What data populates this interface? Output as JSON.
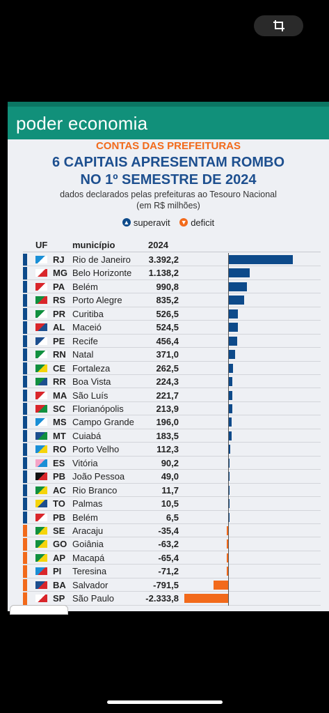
{
  "header": {
    "brand": "poder economia"
  },
  "kicker": "CONTAS DAS PREFEITURAS",
  "title_line1": "6 CAPITAIS APRESENTAM ROMBO",
  "title_line2": "NO 1º SEMESTRE DE 2024",
  "subtitle_line1": "dados declarados pelas prefeituras ao Tesouro Nacional",
  "subtitle_line2": "(em R$ milhões)",
  "legend": {
    "surplus": "superavit",
    "deficit": "deficit",
    "surplus_color": "#0d4a8a",
    "deficit_color": "#f26a1b"
  },
  "columns": {
    "uf": "UF",
    "municipio": "município",
    "year": "2024"
  },
  "chart_data": {
    "type": "bar",
    "orientation": "horizontal",
    "title": "6 CAPITAIS APRESENTAM ROMBO NO 1º SEMESTRE DE 2024",
    "categories": [
      "Rio de Janeiro",
      "Belo Horizonte",
      "Belém",
      "Porto Alegre",
      "Curitiba",
      "Maceió",
      "Recife",
      "Natal",
      "Fortaleza",
      "Boa Vista",
      "São Luís",
      "Florianópolis",
      "Campo Grande",
      "Cuiabá",
      "Porto Velho",
      "Vitória",
      "João Pessoa",
      "Rio Branco",
      "Palmas",
      "Belém",
      "Aracaju",
      "Goiânia",
      "Macapá",
      "Teresina",
      "Salvador",
      "São Paulo"
    ],
    "uf": [
      "RJ",
      "MG",
      "PA",
      "RS",
      "PR",
      "AL",
      "PE",
      "RN",
      "CE",
      "RR",
      "MA",
      "SC",
      "MS",
      "MT",
      "RO",
      "ES",
      "PB",
      "AC",
      "TO",
      "PB",
      "SE",
      "GO",
      "AP",
      "PI",
      "BA",
      "SP"
    ],
    "value_labels": [
      "3.392,2",
      "1.138,2",
      "990,8",
      "835,2",
      "526,5",
      "524,5",
      "456,4",
      "371,0",
      "262,5",
      "224,3",
      "221,7",
      "213,9",
      "196,0",
      "183,5",
      "112,3",
      "90,2",
      "49,0",
      "11,7",
      "10,5",
      "6,5",
      "-35,4",
      "-63,2",
      "-65,4",
      "-71,2",
      "-791,5",
      "-2.333,8"
    ],
    "values": [
      3392.2,
      1138.2,
      990.8,
      835.2,
      526.5,
      524.5,
      456.4,
      371.0,
      262.5,
      224.3,
      221.7,
      213.9,
      196.0,
      183.5,
      112.3,
      90.2,
      49.0,
      11.7,
      10.5,
      6.5,
      -35.4,
      -63.2,
      -65.4,
      -71.2,
      -791.5,
      -2333.8
    ],
    "flag_colors": [
      [
        "#1a8fd6",
        "#ffffff"
      ],
      [
        "#ffffff",
        "#d9262b"
      ],
      [
        "#d9262b",
        "#ffffff"
      ],
      [
        "#11903f",
        "#d9262b"
      ],
      [
        "#11903f",
        "#ffffff"
      ],
      [
        "#d9262b",
        "#1d4f8f"
      ],
      [
        "#1d4f8f",
        "#ffffff"
      ],
      [
        "#11903f",
        "#ffffff"
      ],
      [
        "#11903f",
        "#f5d40b"
      ],
      [
        "#11903f",
        "#1d4f8f"
      ],
      [
        "#d9262b",
        "#ffffff"
      ],
      [
        "#d9262b",
        "#11903f"
      ],
      [
        "#1a8fd6",
        "#ffffff"
      ],
      [
        "#1d4f8f",
        "#11903f"
      ],
      [
        "#1a8fd6",
        "#f5d40b"
      ],
      [
        "#f5a3c6",
        "#1a8fd6"
      ],
      [
        "#111111",
        "#d9262b"
      ],
      [
        "#11903f",
        "#f5d40b"
      ],
      [
        "#f5d40b",
        "#1d4f8f"
      ],
      [
        "#d9262b",
        "#ffffff"
      ],
      [
        "#11903f",
        "#f5d40b"
      ],
      [
        "#11903f",
        "#f5d40b"
      ],
      [
        "#11903f",
        "#f5d40b"
      ],
      [
        "#1a8fd6",
        "#d9262b"
      ],
      [
        "#1d4f8f",
        "#d9262b"
      ],
      [
        "#ffffff",
        "#d9262b"
      ]
    ],
    "xlim": [
      -2333.8,
      3392.2
    ]
  }
}
